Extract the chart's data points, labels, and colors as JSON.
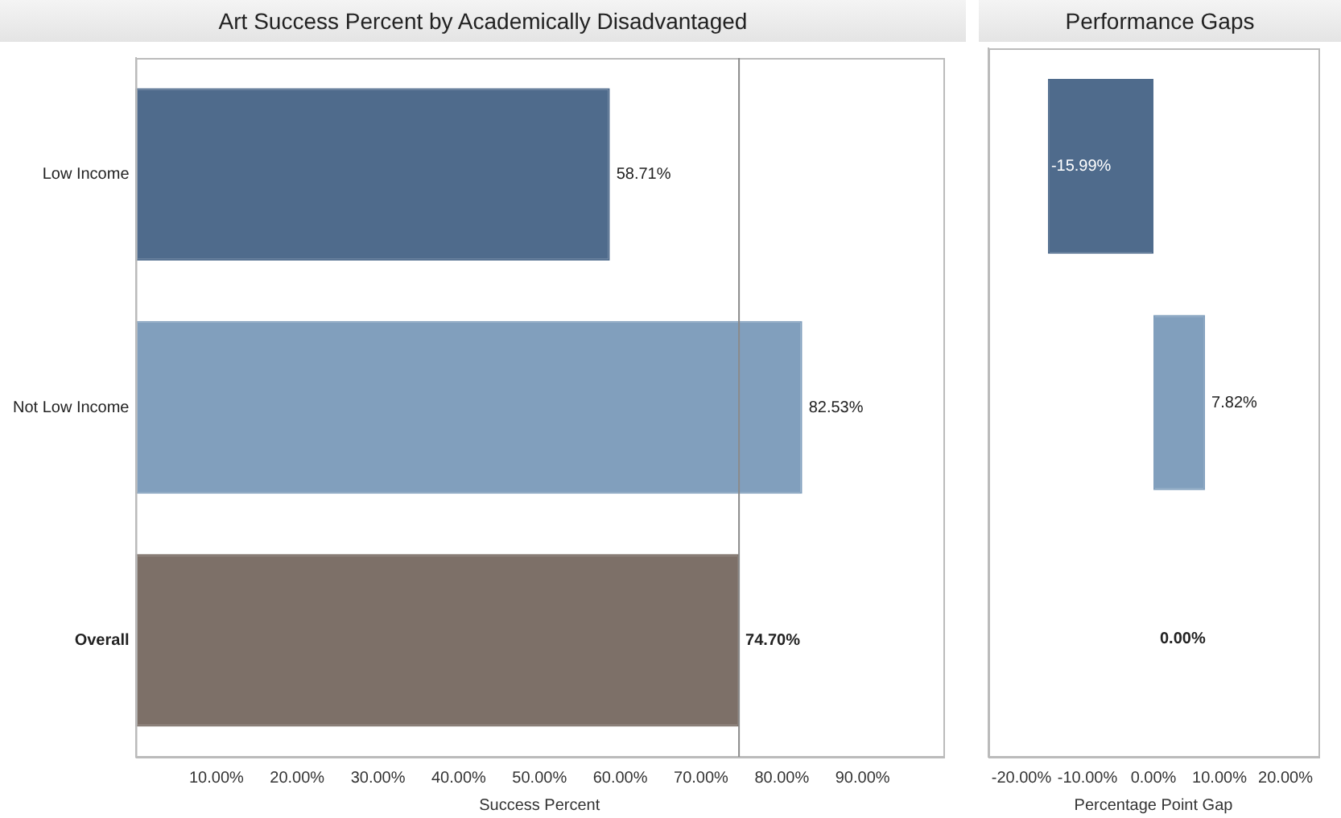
{
  "chart_data": [
    {
      "type": "bar",
      "orientation": "horizontal",
      "title": "Art Success Percent by Academically Disadvantaged",
      "xlabel": "Success Percent",
      "categories": [
        "Low Income",
        "Not Low Income",
        "Overall"
      ],
      "values": [
        58.71,
        82.53,
        74.7
      ],
      "colors": [
        "#4f6b8c",
        "#819fbd",
        "#7d7068"
      ],
      "value_labels": [
        "58.71%",
        "82.53%",
        "74.70%"
      ],
      "xlim": [
        0,
        100
      ],
      "xticks": [
        {
          "value": 10,
          "label": "10.00%"
        },
        {
          "value": 20,
          "label": "20.00%"
        },
        {
          "value": 30,
          "label": "30.00%"
        },
        {
          "value": 40,
          "label": "40.00%"
        },
        {
          "value": 50,
          "label": "50.00%"
        },
        {
          "value": 60,
          "label": "60.00%"
        },
        {
          "value": 70,
          "label": "70.00%"
        },
        {
          "value": 80,
          "label": "80.00%"
        },
        {
          "value": 90,
          "label": "90.00%"
        }
      ],
      "ref_lines": [
        {
          "axis": "x",
          "value": 74.7,
          "color": "#8a8a8a"
        }
      ],
      "grid": false,
      "legend": false
    },
    {
      "type": "bar",
      "orientation": "horizontal",
      "title": "Performance Gaps",
      "xlabel": "Percentage Point Gap",
      "categories": [
        null,
        null,
        null
      ],
      "values": [
        -15.99,
        7.82,
        0
      ],
      "colors": [
        "#4f6b8c",
        "#819fbd",
        "#7d7068"
      ],
      "value_labels": [
        "-15.99%",
        "7.82%",
        "0.00%"
      ],
      "xlim": [
        -25,
        25
      ],
      "xticks": [
        {
          "value": -20,
          "label": "-20.00%"
        },
        {
          "value": -10,
          "label": "-10.00%"
        },
        {
          "value": 0,
          "label": "0.00%"
        },
        {
          "value": 10,
          "label": "10.00%"
        },
        {
          "value": 20,
          "label": "20.00%"
        }
      ],
      "tick_labels": "x",
      "grid": false,
      "legend": false
    }
  ]
}
